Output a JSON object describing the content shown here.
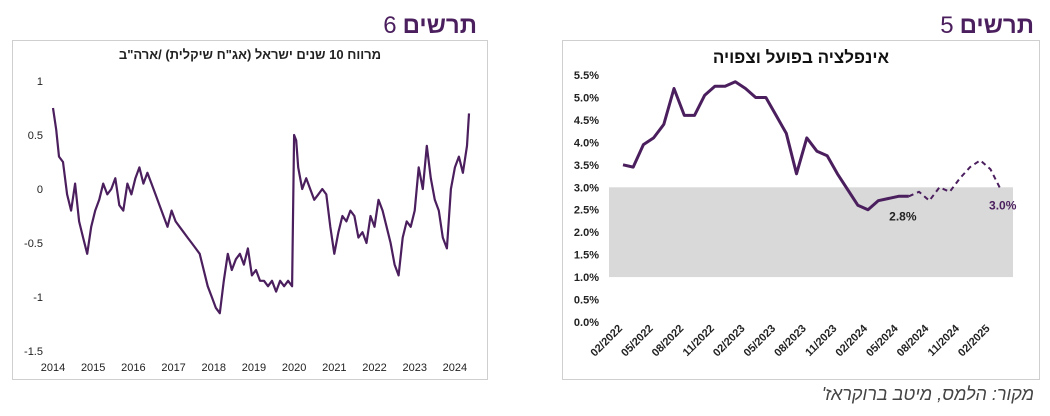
{
  "headings": {
    "right": {
      "word": "תרשים",
      "number": "5"
    },
    "left": {
      "word": "תרשים",
      "number": "6"
    }
  },
  "source": "מקור: הלמס, מיטב ברוקראז'",
  "colors": {
    "line": "#4b1f5e",
    "band": "#d9d9d9"
  },
  "chart_data": [
    {
      "type": "line",
      "title": "מרווח 10 שנים ישראל (אג\"ח שיקלית) /ארה\"ב",
      "xlabel": "",
      "ylabel": "",
      "xlim": [
        2014,
        2024.5
      ],
      "ylim": [
        -1.5,
        1
      ],
      "x_ticks": [
        "2014",
        "2015",
        "2016",
        "2017",
        "2018",
        "2019",
        "2020",
        "2021",
        "2022",
        "2023",
        "2024"
      ],
      "y_ticks": [
        "1",
        "0.5",
        "0",
        "-0.5",
        "-1",
        "-1.5"
      ],
      "grid": false,
      "series": [
        {
          "x": [
            2014.0,
            2014.08,
            2014.15,
            2014.25,
            2014.35,
            2014.45,
            2014.55,
            2014.65,
            2014.75,
            2014.85,
            2014.95,
            2015.05,
            2015.15,
            2015.25,
            2015.35,
            2015.45,
            2015.55,
            2015.65,
            2015.75,
            2015.85,
            2015.95,
            2016.05,
            2016.15,
            2016.25,
            2016.35,
            2016.45,
            2016.55,
            2016.65,
            2016.75,
            2016.85,
            2016.95,
            2017.05,
            2017.15,
            2017.25,
            2017.35,
            2017.45,
            2017.55,
            2017.65,
            2017.75,
            2017.85,
            2017.95,
            2018.05,
            2018.15,
            2018.25,
            2018.35,
            2018.45,
            2018.55,
            2018.65,
            2018.75,
            2018.85,
            2018.95,
            2019.05,
            2019.15,
            2019.25,
            2019.35,
            2019.45,
            2019.55,
            2019.65,
            2019.75,
            2019.85,
            2019.95,
            2020.0,
            2020.05,
            2020.1,
            2020.2,
            2020.3,
            2020.4,
            2020.5,
            2020.6,
            2020.7,
            2020.8,
            2020.9,
            2021.0,
            2021.1,
            2021.2,
            2021.3,
            2021.4,
            2021.5,
            2021.6,
            2021.7,
            2021.8,
            2021.9,
            2022.0,
            2022.1,
            2022.2,
            2022.3,
            2022.4,
            2022.5,
            2022.6,
            2022.7,
            2022.8,
            2022.9,
            2023.0,
            2023.1,
            2023.2,
            2023.3,
            2023.4,
            2023.5,
            2023.6,
            2023.7,
            2023.8,
            2023.9,
            2024.0,
            2024.1,
            2024.2,
            2024.3,
            2024.35
          ],
          "y": [
            0.75,
            0.55,
            0.3,
            0.25,
            -0.05,
            -0.2,
            0.05,
            -0.3,
            -0.45,
            -0.6,
            -0.35,
            -0.2,
            -0.1,
            0.05,
            -0.05,
            0.0,
            0.1,
            -0.15,
            -0.2,
            0.05,
            -0.05,
            0.1,
            0.2,
            0.05,
            0.15,
            0.05,
            -0.05,
            -0.15,
            -0.25,
            -0.35,
            -0.2,
            -0.3,
            -0.35,
            -0.4,
            -0.45,
            -0.5,
            -0.55,
            -0.6,
            -0.75,
            -0.9,
            -1.0,
            -1.1,
            -1.15,
            -0.85,
            -0.6,
            -0.75,
            -0.65,
            -0.6,
            -0.7,
            -0.55,
            -0.8,
            -0.75,
            -0.85,
            -0.85,
            -0.9,
            -0.85,
            -0.95,
            -0.85,
            -0.9,
            -0.85,
            -0.9,
            0.5,
            0.45,
            0.2,
            0.0,
            0.1,
            0.0,
            -0.1,
            -0.05,
            0.0,
            -0.05,
            -0.35,
            -0.6,
            -0.4,
            -0.25,
            -0.3,
            -0.2,
            -0.25,
            -0.45,
            -0.4,
            -0.5,
            -0.25,
            -0.35,
            -0.1,
            -0.2,
            -0.35,
            -0.5,
            -0.7,
            -0.8,
            -0.45,
            -0.3,
            -0.35,
            -0.2,
            0.2,
            0.0,
            0.4,
            0.1,
            -0.1,
            -0.2,
            -0.45,
            -0.55,
            0.0,
            0.2,
            0.3,
            0.15,
            0.4,
            0.7
          ]
        }
      ]
    },
    {
      "type": "line",
      "title": "אינפלציה בפועל וצפויה",
      "xlabel": "",
      "ylabel": "",
      "ylim": [
        0,
        5.5
      ],
      "y_ticks": [
        "5.5%",
        "5.0%",
        "4.5%",
        "4.0%",
        "3.5%",
        "3.0%",
        "2.5%",
        "2.0%",
        "1.5%",
        "1.0%",
        "0.5%",
        "0.0%"
      ],
      "x_ticks": [
        "02/2022",
        "05/2022",
        "08/2022",
        "11/2022",
        "02/2023",
        "05/2023",
        "08/2023",
        "11/2023",
        "02/2024",
        "05/2024",
        "08/2024",
        "11/2024",
        "02/2025"
      ],
      "target_band": [
        1.0,
        3.0
      ],
      "grid": false,
      "series": [
        {
          "style": "solid",
          "x": [
            0,
            1,
            2,
            3,
            4,
            5,
            6,
            7,
            8,
            9,
            10,
            11,
            12,
            13,
            14,
            15,
            16,
            17,
            18,
            19,
            20,
            21,
            22,
            23,
            24,
            25,
            26,
            27,
            28
          ],
          "y": [
            3.5,
            3.45,
            3.95,
            4.1,
            4.4,
            5.2,
            4.6,
            4.6,
            5.05,
            5.25,
            5.25,
            5.35,
            5.2,
            5.0,
            5.0,
            4.6,
            4.2,
            3.3,
            4.1,
            3.8,
            3.7,
            3.3,
            2.95,
            2.6,
            2.5,
            2.7,
            2.75,
            2.8,
            2.8
          ]
        },
        {
          "style": "dashed",
          "x": [
            28,
            29,
            30,
            31,
            32,
            33,
            34,
            35,
            36,
            37
          ],
          "y": [
            2.8,
            2.9,
            2.7,
            3.0,
            2.9,
            3.2,
            3.45,
            3.6,
            3.4,
            2.95
          ]
        }
      ],
      "data_labels": [
        {
          "text": "2.8%"
        },
        {
          "text": "3.0%"
        }
      ]
    }
  ]
}
